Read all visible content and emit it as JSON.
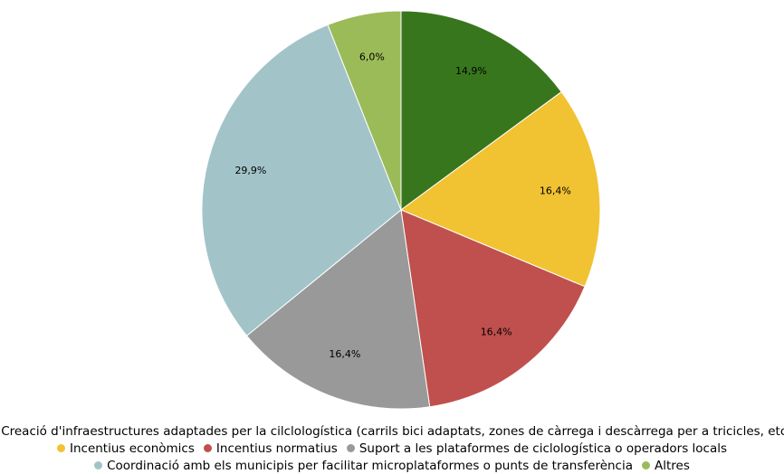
{
  "chart_data": {
    "type": "pie",
    "categories": [
      "Creació d'infraestructures adaptades per la cilclologística (carrils bici adaptats, zones de càrrega i descàrrega per a tricicles, etc.)",
      "Incentius econòmics",
      "Incentius normatius",
      "Suport a les plataformes de ciclologística o operadors locals",
      "Coordinació amb els municipis per facilitar microplataformes o punts de transferència",
      "Altres"
    ],
    "values": [
      14.9,
      16.4,
      16.4,
      16.4,
      29.9,
      6.0
    ],
    "value_labels": [
      "14,9%",
      "16,4%",
      "16,4%",
      "16,4%",
      "29,9%",
      "6,0%"
    ],
    "colors": [
      "#38761d",
      "#f1c232",
      "#c0504d",
      "#999999",
      "#a2c4c9",
      "#9bbb59"
    ],
    "legend": "bottom"
  }
}
